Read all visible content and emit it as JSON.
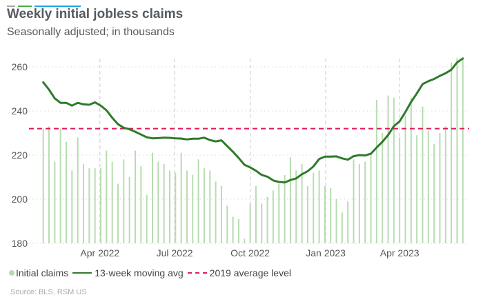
{
  "header": {
    "title": "Weekly initial jobless claims",
    "subtitle": "Seasonally adjusted; in thousands",
    "accent_colors": [
      "#a6a6a6",
      "#4cae3f",
      "#1aa7e8"
    ]
  },
  "footer": {
    "source": "Source: BLS, RSM US"
  },
  "chart_data": {
    "type": "bar+line",
    "title": "Weekly initial jobless claims",
    "subtitle": "Seasonally adjusted; in thousands",
    "ylim": [
      180,
      265
    ],
    "yticks": [
      180,
      200,
      220,
      240,
      260
    ],
    "xticks": [
      {
        "date": "2022-04-01",
        "label": "Apr 2022"
      },
      {
        "date": "2022-07-01",
        "label": "Jul 2022"
      },
      {
        "date": "2022-10-01",
        "label": "Oct 2022"
      },
      {
        "date": "2023-01-01",
        "label": "Jan 2023"
      },
      {
        "date": "2023-04-01",
        "label": "Apr 2023"
      }
    ],
    "grid": {
      "horizontal": "dotted",
      "vertical": "dashed at x ticks"
    },
    "legend_position": "bottom-left",
    "x": [
      "2022-01-22",
      "2022-01-29",
      "2022-02-05",
      "2022-02-12",
      "2022-02-19",
      "2022-02-26",
      "2022-03-05",
      "2022-03-12",
      "2022-03-19",
      "2022-03-26",
      "2022-04-02",
      "2022-04-09",
      "2022-04-16",
      "2022-04-23",
      "2022-04-30",
      "2022-05-07",
      "2022-05-14",
      "2022-05-21",
      "2022-05-28",
      "2022-06-04",
      "2022-06-11",
      "2022-06-18",
      "2022-06-25",
      "2022-07-02",
      "2022-07-09",
      "2022-07-16",
      "2022-07-23",
      "2022-07-30",
      "2022-08-06",
      "2022-08-13",
      "2022-08-20",
      "2022-08-27",
      "2022-09-03",
      "2022-09-10",
      "2022-09-17",
      "2022-09-24",
      "2022-10-01",
      "2022-10-08",
      "2022-10-15",
      "2022-10-22",
      "2022-10-29",
      "2022-11-05",
      "2022-11-12",
      "2022-11-19",
      "2022-11-26",
      "2022-12-03",
      "2022-12-10",
      "2022-12-17",
      "2022-12-24",
      "2022-12-31",
      "2023-01-07",
      "2023-01-14",
      "2023-01-21",
      "2023-01-28",
      "2023-02-04",
      "2023-02-11",
      "2023-02-18",
      "2023-02-25",
      "2023-03-04",
      "2023-03-11",
      "2023-03-18",
      "2023-03-25",
      "2023-04-01",
      "2023-04-08",
      "2023-04-15",
      "2023-04-22",
      "2023-04-29",
      "2023-05-06",
      "2023-05-13",
      "2023-05-20",
      "2023-05-27",
      "2023-06-03",
      "2023-06-10",
      "2023-06-17"
    ],
    "series": [
      {
        "name": "Initial claims",
        "type": "bar",
        "color": "#b7dcb0",
        "values": [
          232,
          233,
          217,
          232,
          226,
          213,
          228,
          216,
          214,
          214,
          214,
          222,
          217,
          207,
          218,
          210,
          222,
          215,
          202,
          221,
          217,
          216,
          213,
          212,
          221,
          213,
          211,
          218,
          214,
          213,
          208,
          206,
          197,
          192,
          191,
          182,
          198,
          206,
          198,
          201,
          204,
          207,
          211,
          219,
          213,
          216,
          206,
          212,
          213,
          206,
          205,
          200,
          194,
          199,
          218,
          216,
          217,
          220,
          245,
          230,
          247,
          246,
          228,
          238,
          246,
          229,
          242,
          231,
          225,
          230,
          233,
          262,
          264,
          264
        ]
      },
      {
        "name": "13-week moving avg",
        "type": "line",
        "color": "#2f7a2a",
        "values": [
          253,
          249.7,
          245.7,
          243.7,
          243.7,
          242.4,
          243.7,
          243,
          242.8,
          243.9,
          242.4,
          240.3,
          236.9,
          234,
          232.4,
          231.7,
          230.6,
          229.3,
          228.1,
          227.6,
          227.7,
          227.9,
          227.8,
          227.6,
          227.5,
          227.1,
          227.4,
          227.4,
          227.9,
          226.8,
          226.2,
          226.7,
          224.1,
          221.5,
          218.7,
          215.6,
          214.4,
          212.9,
          211,
          210.2,
          208.5,
          207.8,
          207.6,
          208.7,
          209.4,
          211.3,
          212.7,
          214.8,
          218.2,
          219.3,
          219.3,
          219.4,
          218.5,
          217.9,
          219.5,
          220,
          219.8,
          220.6,
          223.4,
          226,
          229.1,
          233.1,
          235.3,
          239.5,
          244.1,
          248,
          252.2,
          253.5,
          254.5,
          255.9,
          257.1,
          258.7,
          262,
          263.8
        ]
      },
      {
        "name": "2019 average level",
        "type": "reference",
        "color": "#e0195a",
        "value": 232
      }
    ]
  }
}
